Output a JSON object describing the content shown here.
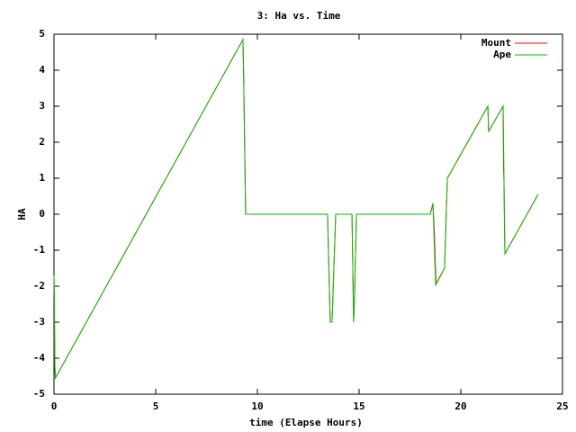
{
  "chart_data": {
    "type": "line",
    "title": "3: Ha vs. Time",
    "x_label": "time (Elapse Hours)",
    "y_label": "HA",
    "xlim": [
      0,
      25
    ],
    "ylim": [
      -5,
      5
    ],
    "xticks": [
      0,
      5,
      10,
      15,
      20,
      25
    ],
    "yticks": [
      -5,
      -4,
      -3,
      -2,
      -1,
      0,
      1,
      2,
      3,
      4,
      5
    ],
    "grid": false,
    "legend": "top-right",
    "series": [
      {
        "name": "Mount",
        "color": "#ff0000",
        "x": [
          0,
          0.02,
          0.04,
          0.07,
          9.29,
          9.33,
          9.42,
          13.45,
          13.58,
          13.67,
          13.85,
          14.65,
          14.73,
          14.78,
          14.87,
          18.5,
          18.63,
          18.7,
          18.78,
          19.2,
          19.34,
          21.33,
          21.37,
          22.08,
          22.1,
          22.12,
          22.15,
          22.17,
          23.8
        ],
        "values": [
          -1.7,
          -2.4,
          -4.2,
          -4.55,
          4.85,
          3.65,
          0,
          0,
          -3,
          -3,
          0,
          0,
          -3,
          -2.2,
          0,
          0,
          0.3,
          -0.5,
          -1.95,
          -1.5,
          1.0,
          3.0,
          2.3,
          3.0,
          1.3,
          0.95,
          -0.5,
          -1.1,
          0.55
        ]
      },
      {
        "name": "Ape",
        "color": "#00c000",
        "x": [
          0,
          0.02,
          0.04,
          0.07,
          9.29,
          9.33,
          9.42,
          13.45,
          13.58,
          13.67,
          13.85,
          14.65,
          14.73,
          14.78,
          14.87,
          18.5,
          18.63,
          18.76,
          19.2,
          19.34,
          21.33,
          21.37,
          22.08,
          22.17,
          23.8
        ],
        "values": [
          -1.7,
          -2.4,
          -4.2,
          -4.55,
          4.85,
          3.65,
          0,
          0,
          -3,
          -3,
          0,
          0,
          -3,
          -2.2,
          0,
          0,
          0.3,
          -1.95,
          -1.5,
          1.0,
          3.0,
          2.3,
          3.0,
          -1.1,
          0.55
        ]
      }
    ]
  }
}
